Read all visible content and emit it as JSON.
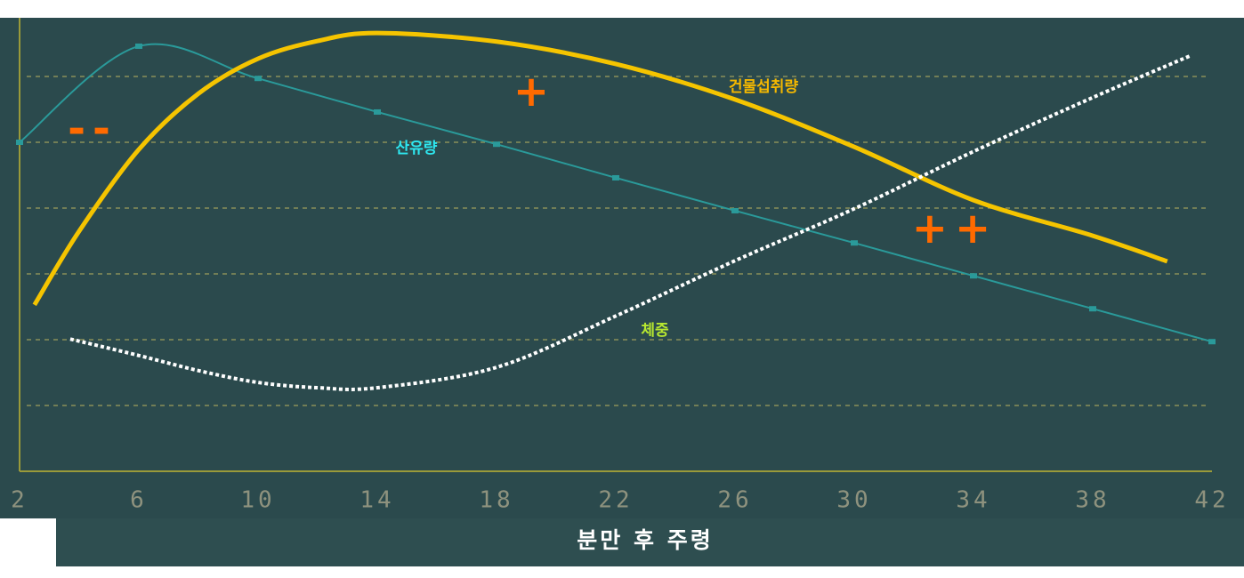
{
  "chart_data": {
    "type": "line",
    "xlabel": "분만 후 주령",
    "xlim": [
      2,
      42
    ],
    "xticks": [
      2,
      6,
      10,
      14,
      18,
      22,
      26,
      30,
      34,
      38,
      42
    ],
    "ylim": [
      0,
      7
    ],
    "yticks": [
      1,
      2,
      3,
      4,
      5,
      6
    ],
    "grid": true,
    "series": [
      {
        "name": "산유량",
        "color": "#2a9a9a",
        "label_color": "#2ee8f0",
        "markers": true,
        "dashed": false,
        "x": [
          2,
          6,
          10,
          14,
          18,
          22,
          26,
          30,
          34,
          38,
          42
        ],
        "values": [
          5.0,
          6.46,
          5.97,
          5.46,
          4.97,
          4.46,
          3.96,
          3.47,
          2.97,
          2.47,
          1.97
        ]
      },
      {
        "name": "건물섭취량",
        "color": "#f5c400",
        "label_color": "#f5b800",
        "markers": false,
        "dashed": false,
        "x": [
          2.5,
          4,
          6,
          8,
          10,
          12,
          14,
          18,
          22,
          26,
          30,
          34,
          38,
          40.5
        ],
        "values": [
          2.53,
          3.65,
          4.89,
          5.74,
          6.27,
          6.54,
          6.66,
          6.53,
          6.19,
          5.65,
          4.93,
          4.12,
          3.58,
          3.19
        ]
      },
      {
        "name": "체중",
        "color": "#ffffff",
        "label_color": "#b8e830",
        "markers": false,
        "dashed": true,
        "x": [
          3.7,
          6,
          8,
          10,
          12,
          14,
          18,
          22,
          26,
          30,
          34,
          38,
          41.3
        ],
        "values": [
          2.01,
          1.76,
          1.53,
          1.35,
          1.27,
          1.27,
          1.58,
          2.36,
          3.2,
          3.99,
          4.86,
          5.68,
          6.32
        ]
      }
    ],
    "annotations": [
      "--",
      "+",
      "++"
    ],
    "annotation_color": "#ff6a00"
  }
}
